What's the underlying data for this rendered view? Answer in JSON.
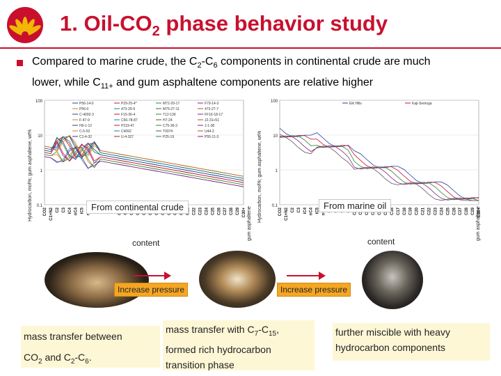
{
  "header": {
    "title_part1": "1. Oil-CO",
    "title_sub": "2",
    "title_part2": " phase behavior study"
  },
  "bullet": {
    "line1_a": "Compared to marine crude, the C",
    "line1_sub1": "2",
    "line1_b": "-C",
    "line1_sub2": "6",
    "line1_c": " components in continental crude are much",
    "line2_a": "lower,    while C",
    "line2_sub": "11+",
    "line2_b": " and gum asphaltene components are relative higher"
  },
  "left_chart": {
    "ylabel": "Hydrocarbon, mol%; gum asphaltene, wt%",
    "yticks": [
      "100",
      "10",
      "1",
      "0.1"
    ],
    "xticks": [
      "CO2",
      "C1+N2",
      "C2",
      "C3",
      "iC4",
      "nC4",
      "iC5",
      "nC5",
      "C6",
      "C7",
      "C8",
      "C9",
      "C10",
      "C11",
      "C12",
      "C13",
      "C14",
      "C15",
      "C16",
      "C17",
      "C18",
      "C19",
      "C20",
      "C21",
      "C22",
      "C23",
      "C24",
      "C25",
      "C26",
      "C27",
      "C28",
      "C29",
      "C30+"
    ],
    "legend": [
      "P56-14-0",
      "P29-25-4*",
      "M72-29-17",
      "F79-14-3",
      "P56-0",
      "473-29-9",
      "M75-27-11",
      "473-27-7",
      "C-4092-3",
      "F15-36-4",
      "T12-136",
      "FF16-18-17",
      "F-47-9",
      "C56-78-87",
      "H7-24",
      "J2-31+51",
      "H6-1-12",
      "P219-47",
      "C75-36-3",
      "J-1-38",
      "C-5-52",
      "C4092",
      "T0074",
      "U44-2",
      "C1-4-32",
      "U-4-327",
      "P25-19",
      "P55-11-3"
    ],
    "caption_box": "From continental crude",
    "caption_plain": "content",
    "gum_label": "gum asphaltene"
  },
  "right_chart": {
    "ylabel": "Hydrocarbon, mol%; gum asphaltene, wt%",
    "yticks": [
      "100",
      "10",
      "1",
      "0.1"
    ],
    "xticks": [
      "CO2",
      "C1+N2",
      "C2",
      "C3",
      "iC4",
      "nC4",
      "iC5",
      "nC5",
      "C6",
      "C7",
      "C8",
      "C9",
      "C10",
      "C11",
      "C12",
      "C13",
      "C14",
      "C15",
      "C16",
      "C17",
      "C18",
      "C19",
      "C20",
      "C21",
      "C22",
      "C23",
      "C24",
      "C25",
      "C26",
      "C27",
      "C28",
      "C29",
      "C30+"
    ],
    "legend": [
      "Elk Hills",
      "Kaji-Semoga",
      "",
      "",
      "",
      "",
      "",
      "",
      "",
      ""
    ],
    "caption_box": "From marine oil",
    "caption_plain": "content",
    "gum_label": "gum asphaltene"
  },
  "process": {
    "arrow1_label": "Increase pressure",
    "arrow2_label": "Increase pressure"
  },
  "descriptions": {
    "d1_line1": "mass transfer between",
    "d1_line2_a": "CO",
    "d1_line2_sub1": "2",
    "d1_line2_b": " and C",
    "d1_line2_sub2": "2",
    "d1_line2_c": "-C",
    "d1_line2_sub3": "6",
    "d1_line2_d": ".",
    "d2_line1_a": "mass transfer with C",
    "d2_line1_sub1": "7",
    "d2_line1_b": "-C",
    "d2_line1_sub2": "15",
    "d2_line1_c": ",",
    "d2_line2": "formed rich hydrocarbon",
    "d2_line3": "transition phase",
    "d3_line1": "further miscible with heavy",
    "d3_line2": "hydrocarbon components"
  },
  "colors": {
    "accent": "#c8102e",
    "logo_yellow": "#f2b705",
    "orange_label": "#f5a623",
    "desc_bg": "#fdf7d6"
  }
}
